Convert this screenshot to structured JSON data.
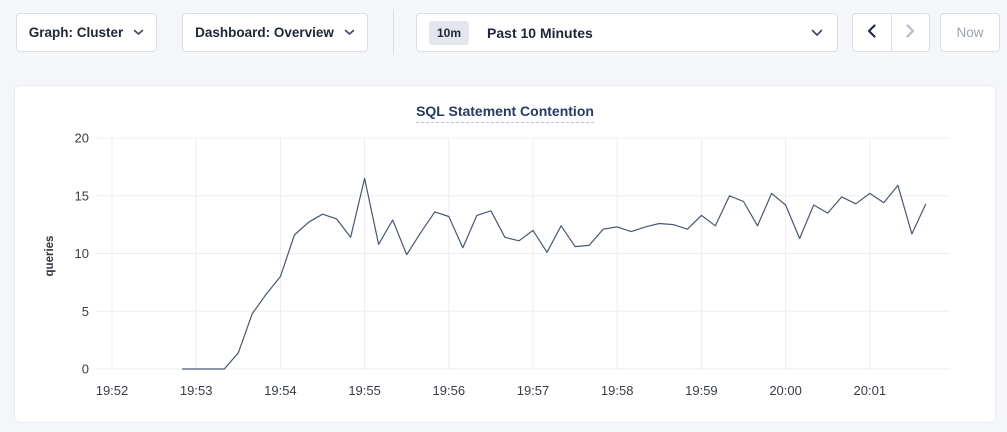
{
  "toolbar": {
    "graph_selector": {
      "label": "Graph: Cluster"
    },
    "dashboard_selector": {
      "label": "Dashboard: Overview"
    },
    "time_selector": {
      "badge": "10m",
      "label": "Past 10 Minutes"
    },
    "now_label": "Now"
  },
  "chart_data": {
    "type": "line",
    "title": "SQL Statement Contention",
    "xlabel": "",
    "ylabel": "queries",
    "ylim": [
      0,
      20
    ],
    "yticks": [
      0,
      5,
      10,
      15,
      20
    ],
    "x_tick_labels": [
      "19:52",
      "19:53",
      "19:54",
      "19:55",
      "19:56",
      "19:57",
      "19:58",
      "19:59",
      "20:00",
      "20:01"
    ],
    "grid": true,
    "legend_position": "none",
    "line_color": "#475872",
    "grid_color": "#ededf0",
    "series": [
      {
        "name": "queries",
        "x_seconds_after_19_52": [
          50,
          60,
          70,
          80,
          90,
          100,
          110,
          120,
          130,
          140,
          150,
          160,
          170,
          180,
          190,
          200,
          210,
          220,
          230,
          240,
          250,
          260,
          270,
          280,
          290,
          300,
          310,
          320,
          330,
          340,
          350,
          360,
          370,
          380,
          390,
          400,
          410,
          420,
          430,
          440,
          450,
          460,
          470,
          480,
          490,
          500,
          510,
          520,
          530,
          540,
          550,
          560,
          570,
          580
        ],
        "values": [
          0,
          0,
          0,
          0,
          1.4,
          4.8,
          6.5,
          8,
          11.6,
          12.7,
          13.4,
          13,
          11.4,
          16.5,
          10.8,
          12.9,
          9.9,
          11.8,
          13.6,
          13.2,
          10.5,
          13.3,
          13.7,
          11.4,
          11.1,
          12,
          10.1,
          12.4,
          10.6,
          10.7,
          12.1,
          12.3,
          11.9,
          12.3,
          12.6,
          12.5,
          12.1,
          13.3,
          12.4,
          15,
          14.5,
          12.4,
          15.2,
          14.2,
          11.3,
          14.2,
          13.5,
          14.9,
          14.3,
          15.2,
          14.4,
          15.9,
          11.7,
          14.3
        ]
      }
    ]
  }
}
